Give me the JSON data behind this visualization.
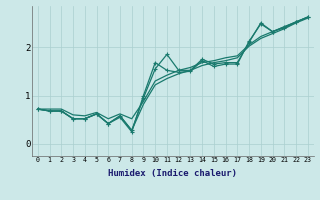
{
  "title": "",
  "xlabel": "Humidex (Indice chaleur)",
  "ylabel": "",
  "bg_color": "#cce8e8",
  "line_color": "#1a7a6e",
  "grid_color": "#aacfcf",
  "xlim": [
    -0.5,
    23.5
  ],
  "ylim": [
    -0.25,
    2.85
  ],
  "xticks": [
    0,
    1,
    2,
    3,
    4,
    5,
    6,
    7,
    8,
    9,
    10,
    11,
    12,
    13,
    14,
    15,
    16,
    17,
    18,
    19,
    20,
    21,
    22,
    23
  ],
  "yticks": [
    0,
    1,
    2
  ],
  "series_smooth1": [
    0.72,
    0.68,
    0.68,
    0.52,
    0.52,
    0.62,
    0.42,
    0.58,
    0.28,
    0.82,
    1.22,
    1.35,
    1.45,
    1.52,
    1.62,
    1.68,
    1.72,
    1.78,
    2.02,
    2.18,
    2.28,
    2.38,
    2.5,
    2.6
  ],
  "series_smooth2": [
    0.72,
    0.72,
    0.72,
    0.6,
    0.58,
    0.65,
    0.52,
    0.62,
    0.52,
    0.88,
    1.3,
    1.42,
    1.52,
    1.58,
    1.68,
    1.72,
    1.78,
    1.82,
    2.05,
    2.22,
    2.32,
    2.42,
    2.52,
    2.62
  ],
  "series_jagged1": [
    0.72,
    0.68,
    0.68,
    0.52,
    0.52,
    0.62,
    0.42,
    0.58,
    0.28,
    0.95,
    1.55,
    1.85,
    1.52,
    1.52,
    1.75,
    1.65,
    1.68,
    1.68,
    2.1,
    2.5,
    2.32,
    2.42,
    2.52,
    2.62
  ],
  "series_jagged2": [
    0.72,
    0.68,
    0.68,
    0.52,
    0.52,
    0.62,
    0.42,
    0.55,
    0.25,
    1.0,
    1.68,
    1.52,
    1.48,
    1.5,
    1.72,
    1.6,
    1.65,
    1.65,
    2.12,
    2.48,
    2.32,
    2.4,
    2.52,
    2.62
  ]
}
